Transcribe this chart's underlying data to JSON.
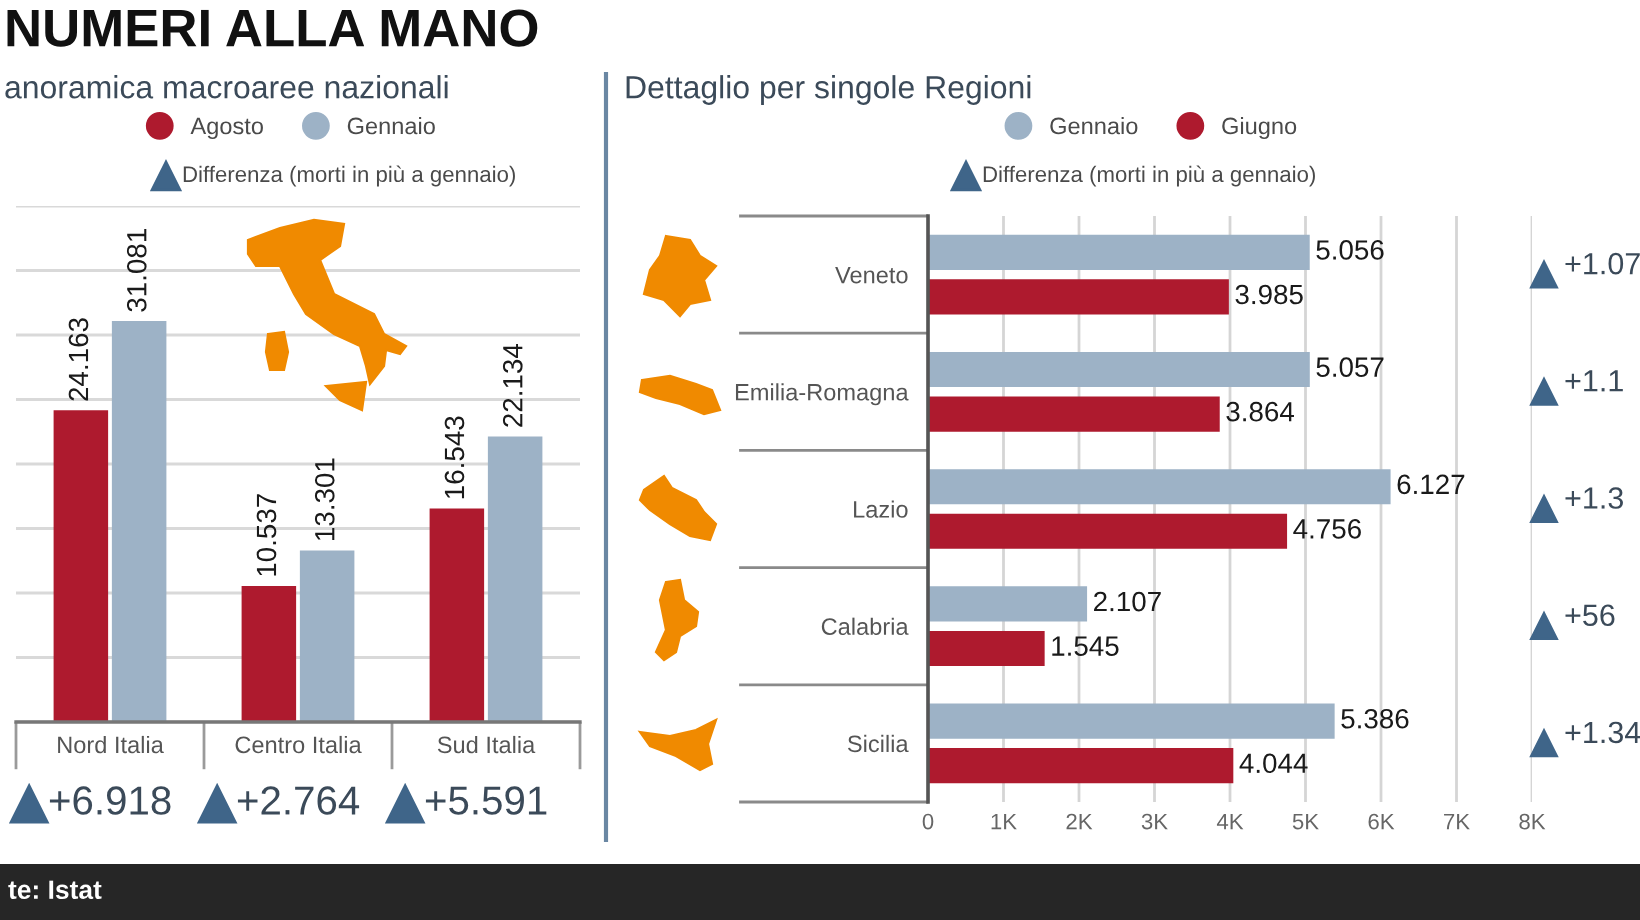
{
  "chart_data": [
    {
      "type": "bar",
      "title": "NUMERI ALLA MANO",
      "subtitle": "anoramica macroaree nazionali",
      "categories": [
        "Nord Italia",
        "Centro Italia",
        "Sud Italia"
      ],
      "series": [
        {
          "name": "Agosto",
          "color": "#ae1a2e",
          "values": [
            24.163,
            10.537,
            16.543
          ]
        },
        {
          "name": "Gennaio",
          "color": "#9db2c6",
          "values": [
            31.081,
            13.301,
            22.134
          ]
        }
      ],
      "ylim": [
        0,
        40
      ],
      "yticks": [
        {
          "value": 0,
          "label": null
        },
        {
          "value": 5,
          "label": null
        },
        {
          "value": 10,
          "label": null
        },
        {
          "value": 15,
          "label": null
        },
        {
          "value": 20,
          "label": null
        },
        {
          "value": 25,
          "label": null
        },
        {
          "value": 30,
          "label": null
        },
        {
          "value": 35,
          "label": null
        },
        {
          "value": 40,
          "label": null
        }
      ],
      "tick_labels": "x",
      "grid": "y",
      "legend": "top",
      "data_labels": true,
      "annotations": [
        "Differenza (morti in più a gennaio)",
        "+6.918",
        "+2.764",
        "+5.591",
        "te: Istat"
      ]
    },
    {
      "type": "bar",
      "orientation": "horizontal",
      "subtitle": "Dettaglio per singole Regioni",
      "categories": [
        "Veneto",
        "Emilia-Romagna",
        "Lazio",
        "Calabria",
        "Sicilia"
      ],
      "series": [
        {
          "name": "Gennaio",
          "color": "#9db2c6",
          "values": [
            5.056,
            5.057,
            6.127,
            2.107,
            5.386
          ]
        },
        {
          "name": "Giugno",
          "color": "#ae1a2e",
          "values": [
            3.985,
            3.864,
            4.756,
            1.545,
            4.044
          ]
        }
      ],
      "xlim": [
        0,
        8
      ],
      "xticks": [
        0,
        {
          "value": 1,
          "label": "1K"
        },
        {
          "value": 2,
          "label": "2K"
        },
        {
          "value": 3,
          "label": "3K"
        },
        {
          "value": 4,
          "label": "4K"
        },
        {
          "value": 5,
          "label": "5K"
        },
        {
          "value": 6,
          "label": "6K"
        },
        {
          "value": 7,
          "label": "7K"
        },
        {
          "value": 8,
          "label": "8K"
        }
      ],
      "grid": "x",
      "legend": "top",
      "data_labels": true,
      "annotations": [
        "Differenza (morti in più a gennaio)",
        "+1.07",
        "+1.1",
        "+1.3",
        "+56",
        "+1.34"
      ]
    }
  ]
}
